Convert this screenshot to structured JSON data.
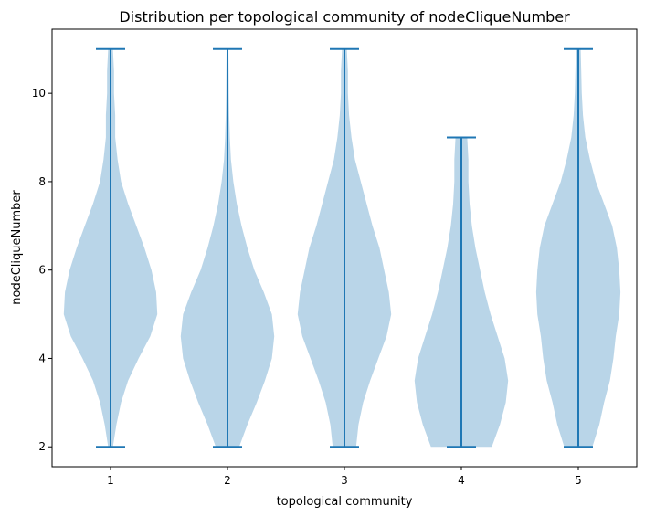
{
  "chart_data": {
    "type": "violin",
    "title": "Distribution per topological community of nodeCliqueNumber",
    "xlabel": "topological community",
    "ylabel": "nodeCliqueNumber",
    "ylim": [
      1.55,
      11.45
    ],
    "xlim": [
      0.5,
      5.5
    ],
    "categories": [
      "1",
      "2",
      "3",
      "4",
      "5"
    ],
    "x_ticks": [
      1,
      2,
      3,
      4,
      5
    ],
    "y_ticks": [
      2,
      4,
      6,
      8,
      10
    ],
    "grid": false,
    "colors": {
      "fill": "#b9d5e8",
      "line": "#1f77b4"
    },
    "violins": [
      {
        "position": 1,
        "min": 2,
        "max": 11,
        "profile": [
          [
            2,
            0.02
          ],
          [
            2.5,
            0.05
          ],
          [
            3,
            0.09
          ],
          [
            3.5,
            0.15
          ],
          [
            4,
            0.24
          ],
          [
            4.5,
            0.34
          ],
          [
            5,
            0.4
          ],
          [
            5.5,
            0.39
          ],
          [
            6,
            0.35
          ],
          [
            6.5,
            0.29
          ],
          [
            7,
            0.22
          ],
          [
            7.5,
            0.15
          ],
          [
            8,
            0.09
          ],
          [
            8.5,
            0.06
          ],
          [
            9,
            0.04
          ],
          [
            9.5,
            0.04
          ],
          [
            10,
            0.03
          ],
          [
            10.5,
            0.03
          ],
          [
            11,
            0.02
          ]
        ]
      },
      {
        "position": 2,
        "min": 2,
        "max": 11,
        "profile": [
          [
            2,
            0.1
          ],
          [
            2.5,
            0.17
          ],
          [
            3,
            0.25
          ],
          [
            3.5,
            0.32
          ],
          [
            4,
            0.38
          ],
          [
            4.5,
            0.4
          ],
          [
            5,
            0.38
          ],
          [
            5.5,
            0.31
          ],
          [
            6,
            0.23
          ],
          [
            6.5,
            0.17
          ],
          [
            7,
            0.12
          ],
          [
            7.5,
            0.08
          ],
          [
            8,
            0.05
          ],
          [
            8.5,
            0.03
          ],
          [
            9,
            0.02
          ],
          [
            9.5,
            0.015
          ],
          [
            10,
            0.012
          ],
          [
            10.5,
            0.01
          ],
          [
            11,
            0.008
          ]
        ]
      },
      {
        "position": 3,
        "min": 2,
        "max": 11,
        "profile": [
          [
            2,
            0.1
          ],
          [
            2.5,
            0.12
          ],
          [
            3,
            0.16
          ],
          [
            3.5,
            0.22
          ],
          [
            4,
            0.29
          ],
          [
            4.5,
            0.36
          ],
          [
            5,
            0.4
          ],
          [
            5.5,
            0.38
          ],
          [
            6,
            0.34
          ],
          [
            6.5,
            0.3
          ],
          [
            7,
            0.24
          ],
          [
            7.5,
            0.19
          ],
          [
            8,
            0.14
          ],
          [
            8.5,
            0.09
          ],
          [
            9,
            0.06
          ],
          [
            9.5,
            0.04
          ],
          [
            10,
            0.03
          ],
          [
            10.5,
            0.03
          ],
          [
            11,
            0.02
          ]
        ]
      },
      {
        "position": 4,
        "min": 2,
        "max": 9,
        "profile": [
          [
            2,
            0.26
          ],
          [
            2.5,
            0.33
          ],
          [
            3,
            0.38
          ],
          [
            3.5,
            0.4
          ],
          [
            4,
            0.37
          ],
          [
            4.5,
            0.31
          ],
          [
            5,
            0.25
          ],
          [
            5.5,
            0.2
          ],
          [
            6,
            0.16
          ],
          [
            6.5,
            0.12
          ],
          [
            7,
            0.09
          ],
          [
            7.5,
            0.07
          ],
          [
            8,
            0.06
          ],
          [
            8.5,
            0.06
          ],
          [
            9,
            0.05
          ]
        ]
      },
      {
        "position": 5,
        "min": 2,
        "max": 11,
        "profile": [
          [
            2,
            0.12
          ],
          [
            2.5,
            0.18
          ],
          [
            3,
            0.22
          ],
          [
            3.5,
            0.27
          ],
          [
            4,
            0.3
          ],
          [
            4.5,
            0.32
          ],
          [
            5,
            0.35
          ],
          [
            5.5,
            0.36
          ],
          [
            6,
            0.35
          ],
          [
            6.5,
            0.33
          ],
          [
            7,
            0.29
          ],
          [
            7.5,
            0.22
          ],
          [
            8,
            0.15
          ],
          [
            8.5,
            0.1
          ],
          [
            9,
            0.06
          ],
          [
            9.5,
            0.04
          ],
          [
            10,
            0.03
          ],
          [
            10.5,
            0.025
          ],
          [
            11,
            0.02
          ]
        ]
      }
    ]
  }
}
